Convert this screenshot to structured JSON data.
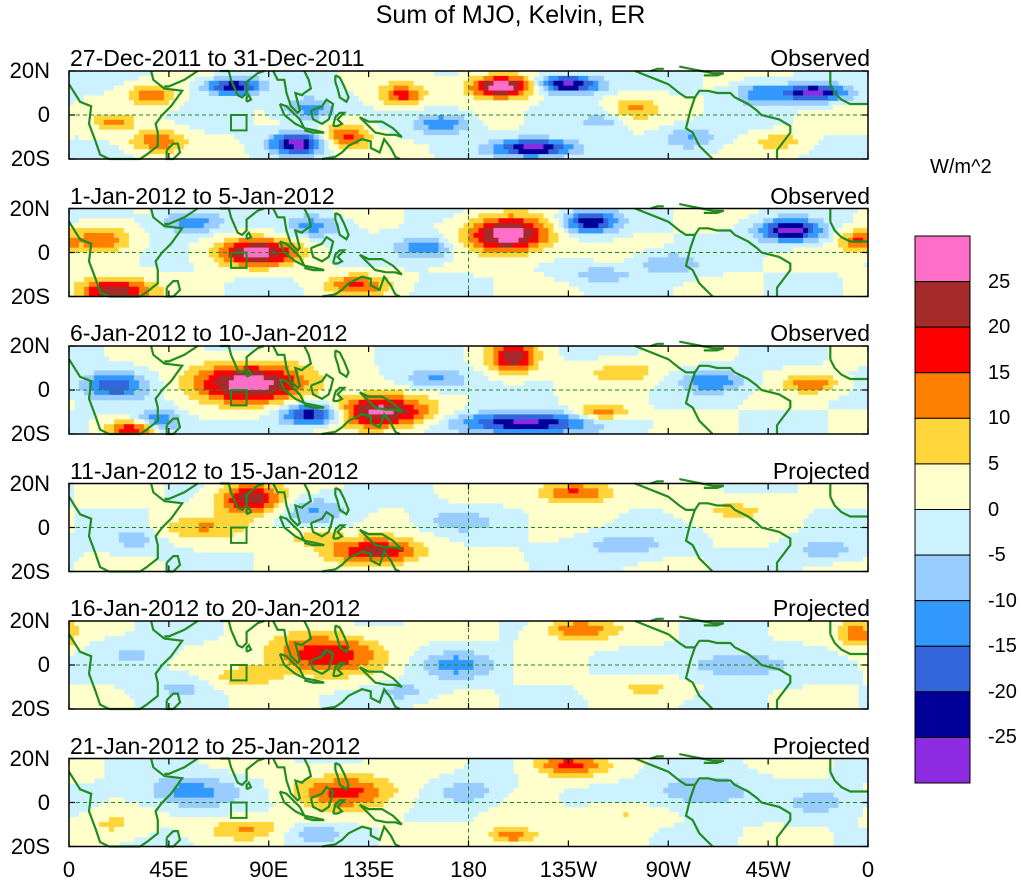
{
  "title": "Sum of MJO, Kelvin, ER",
  "units": "W/m^2",
  "lat_labels": [
    "20N",
    "0",
    "20S"
  ],
  "lon_labels": [
    "0",
    "45E",
    "90E",
    "135E",
    "180",
    "135W",
    "90W",
    "45W",
    "0"
  ],
  "colorbar": {
    "colors": [
      "#ff6ec7",
      "#a52a2a",
      "#ff0000",
      "#ff7f00",
      "#ffd53a",
      "#ffffcc",
      "#ccf2ff",
      "#99ccff",
      "#3399ff",
      "#3366dd",
      "#000099",
      "#8c2be2"
    ],
    "labels": [
      "25",
      "20",
      "15",
      "10",
      "5",
      "0",
      "-5",
      "-10",
      "-15",
      "-20",
      "-25"
    ]
  },
  "panels": [
    {
      "title": "27-Dec-2011 to 31-Dec-2011",
      "status": "Observed"
    },
    {
      "title": "1-Jan-2012 to 5-Jan-2012",
      "status": "Observed"
    },
    {
      "title": "6-Jan-2012 to 10-Jan-2012",
      "status": "Observed"
    },
    {
      "title": "11-Jan-2012 to 15-Jan-2012",
      "status": "Projected"
    },
    {
      "title": "16-Jan-2012 to 20-Jan-2012",
      "status": "Projected"
    },
    {
      "title": "21-Jan-2012 to 25-Jan-2012",
      "status": "Projected"
    }
  ],
  "chart_data": {
    "type": "heatmap",
    "title": "Sum of MJO, Kelvin, ER",
    "colorbar_label": "W/m^2",
    "levels": [
      -25,
      -20,
      -15,
      -10,
      -5,
      0,
      5,
      10,
      15,
      20,
      25
    ],
    "x_ticks": [
      "0",
      "45E",
      "90E",
      "135E",
      "180",
      "135W",
      "90W",
      "45W",
      "0"
    ],
    "y_ticks": [
      "20N",
      "0",
      "20S"
    ],
    "xlim_deg_east": [
      0,
      360
    ],
    "ylim_deg": [
      -20,
      20
    ],
    "panels": [
      {
        "title": "27-Dec-2011 to 31-Dec-2011",
        "status": "Observed",
        "blobs": [
          [
            195,
            13,
            14,
            5,
            30
          ],
          [
            225,
            14,
            14,
            4,
            -28
          ],
          [
            335,
            10,
            15,
            4,
            -27
          ],
          [
            103,
            -13,
            12,
            5,
            -27
          ],
          [
            210,
            -15,
            18,
            4,
            -28
          ],
          [
            37,
            9,
            10,
            5,
            14
          ],
          [
            74,
            13,
            12,
            4,
            -25
          ],
          [
            150,
            9,
            10,
            5,
            17
          ],
          [
            40,
            -12,
            12,
            5,
            15
          ],
          [
            125,
            -10,
            10,
            6,
            17
          ],
          [
            108,
            3,
            12,
            5,
            -14
          ],
          [
            168,
            -4,
            12,
            5,
            -15
          ],
          [
            255,
            3,
            10,
            5,
            10
          ],
          [
            310,
            10,
            10,
            5,
            -12
          ],
          [
            20,
            -3,
            10,
            4,
            10
          ],
          [
            280,
            -10,
            12,
            5,
            -10
          ],
          [
            320,
            -12,
            10,
            4,
            9
          ],
          [
            240,
            -3,
            10,
            4,
            -7
          ]
        ]
      },
      {
        "title": "1-Jan-2012 to 5-Jan-2012",
        "status": "Observed",
        "blobs": [
          [
            198,
            8,
            18,
            8,
            30
          ],
          [
            235,
            14,
            12,
            5,
            -25
          ],
          [
            325,
            10,
            14,
            5,
            -28
          ],
          [
            85,
            0,
            18,
            6,
            27
          ],
          [
            20,
            -18,
            16,
            6,
            26
          ],
          [
            130,
            -15,
            14,
            5,
            15
          ],
          [
            160,
            2,
            12,
            5,
            -16
          ],
          [
            55,
            14,
            14,
            5,
            -14
          ],
          [
            15,
            6,
            12,
            6,
            14
          ],
          [
            355,
            5,
            8,
            5,
            15
          ],
          [
            270,
            -5,
            14,
            5,
            -10
          ],
          [
            110,
            12,
            12,
            5,
            -13
          ],
          [
            240,
            -10,
            14,
            4,
            -8
          ]
        ]
      },
      {
        "title": "6-Jan-2012 to 10-Jan-2012",
        "status": "Observed",
        "blobs": [
          [
            82,
            3,
            26,
            9,
            28
          ],
          [
            140,
            -10,
            22,
            7,
            28
          ],
          [
            200,
            15,
            10,
            7,
            24
          ],
          [
            110,
            -11,
            14,
            5,
            -27
          ],
          [
            205,
            -15,
            28,
            5,
            -27
          ],
          [
            30,
            -18,
            12,
            4,
            22
          ],
          [
            20,
            2,
            14,
            6,
            -20
          ],
          [
            40,
            -15,
            10,
            6,
            -18
          ],
          [
            165,
            5,
            14,
            5,
            -12
          ],
          [
            250,
            8,
            16,
            5,
            9
          ],
          [
            290,
            4,
            14,
            5,
            -14
          ],
          [
            335,
            3,
            12,
            4,
            14
          ],
          [
            240,
            -10,
            12,
            4,
            14
          ]
        ]
      },
      {
        "title": "11-Jan-2012 to 15-Jan-2012",
        "status": "Projected",
        "blobs": [
          [
            82,
            13,
            14,
            7,
            24
          ],
          [
            138,
            -11,
            20,
            6,
            22
          ],
          [
            228,
            16,
            16,
            5,
            17
          ],
          [
            60,
            0,
            22,
            5,
            9
          ],
          [
            110,
            8,
            16,
            6,
            -10
          ],
          [
            175,
            3,
            16,
            5,
            -8
          ],
          [
            250,
            -8,
            20,
            6,
            -8
          ],
          [
            300,
            8,
            20,
            6,
            6
          ],
          [
            30,
            -5,
            12,
            6,
            -7
          ],
          [
            340,
            -10,
            15,
            5,
            -8
          ],
          [
            110,
            -5,
            14,
            4,
            8
          ]
        ]
      },
      {
        "title": "16-Jan-2012 to 20-Jan-2012",
        "status": "Projected",
        "blobs": [
          [
            115,
            5,
            24,
            9,
            20
          ],
          [
            230,
            16,
            16,
            5,
            15
          ],
          [
            80,
            -5,
            16,
            5,
            9
          ],
          [
            175,
            0,
            16,
            6,
            -12
          ],
          [
            300,
            0,
            24,
            6,
            -10
          ],
          [
            355,
            14,
            8,
            6,
            14
          ],
          [
            30,
            5,
            14,
            6,
            -6
          ],
          [
            50,
            -10,
            14,
            6,
            -6
          ],
          [
            260,
            -10,
            16,
            5,
            6
          ],
          [
            150,
            -12,
            14,
            4,
            -7
          ]
        ]
      },
      {
        "title": "21-Jan-2012 to 25-Jan-2012",
        "status": "Projected",
        "blobs": [
          [
            125,
            5,
            22,
            8,
            16
          ],
          [
            225,
            17,
            16,
            5,
            17
          ],
          [
            55,
            5,
            20,
            7,
            -13
          ],
          [
            80,
            -12,
            18,
            5,
            10
          ],
          [
            200,
            -15,
            12,
            4,
            14
          ],
          [
            180,
            5,
            14,
            6,
            -8
          ],
          [
            285,
            5,
            24,
            8,
            -9
          ],
          [
            250,
            -5,
            16,
            5,
            6
          ],
          [
            340,
            0,
            16,
            6,
            -7
          ],
          [
            20,
            -10,
            14,
            6,
            6
          ],
          [
            110,
            -14,
            14,
            4,
            -8
          ]
        ]
      }
    ]
  }
}
